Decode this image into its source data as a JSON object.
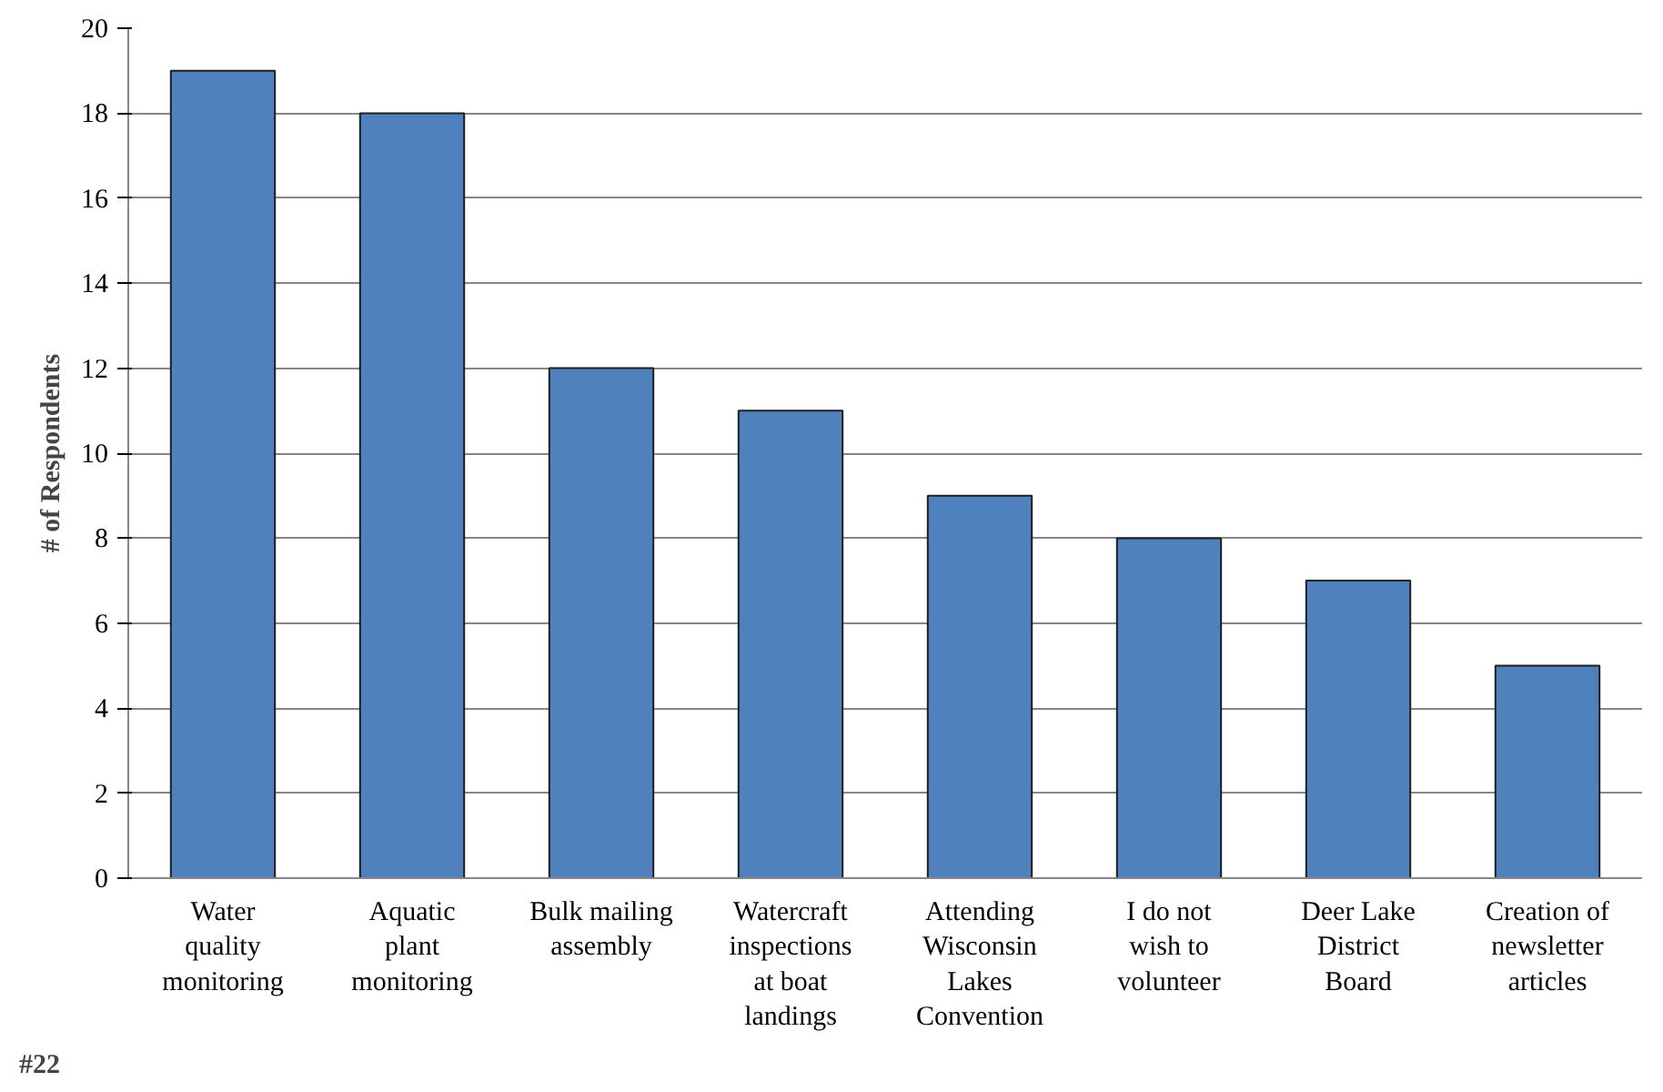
{
  "chart_data": {
    "type": "bar",
    "categories": [
      "Water quality monitoring",
      "Aquatic plant monitoring",
      "Bulk mailing assembly",
      "Watercraft inspections at boat landings",
      "Attending Wisconsin Lakes Convention",
      "I do not wish to volunteer",
      "Deer Lake District Board",
      "Creation of newsletter articles"
    ],
    "values": [
      19,
      18,
      12,
      11,
      9,
      8,
      7,
      5
    ],
    "color": "#4f81bd",
    "ylabel": "# of Respondents",
    "annotations": [
      "#22"
    ],
    "ylim": [
      0,
      20
    ],
    "yticks": [
      0,
      2,
      4,
      6,
      8,
      10,
      12,
      14,
      16,
      18,
      20
    ],
    "grid": "y"
  }
}
